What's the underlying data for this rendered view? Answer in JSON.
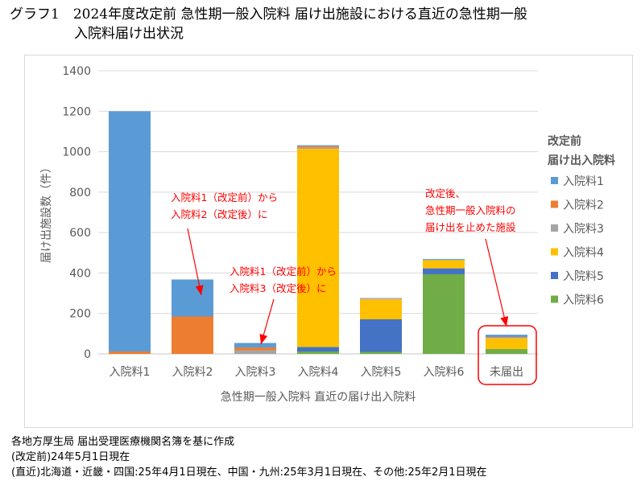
{
  "title": {
    "line1": "グラフ1　2024年度改定前 急性期一般入院料 届け出施設における直近の急性期一般",
    "line2": "入院料届け出状況"
  },
  "chart_data": {
    "type": "bar",
    "stacked": true,
    "categories": [
      "入院料1",
      "入院料2",
      "入院料3",
      "入院料4",
      "入院料5",
      "入院料6",
      "未届出"
    ],
    "xlabel": "急性期一般入院料 直近の届け出入院料",
    "ylabel": "届け出施設数（件）",
    "ylim": [
      0,
      1400
    ],
    "yticks": [
      0,
      200,
      400,
      600,
      800,
      1000,
      1200,
      1400
    ],
    "grid": true,
    "legend": {
      "title1": "改定前",
      "title2": "届け出入院料",
      "placement": "right"
    },
    "series": [
      {
        "name": "入院料1",
        "color": "#5b9bd5",
        "values": [
          1188,
          183,
          22,
          5,
          2,
          5,
          12
        ]
      },
      {
        "name": "入院料2",
        "color": "#ed7d31",
        "values": [
          12,
          185,
          14,
          8,
          2,
          0,
          4
        ]
      },
      {
        "name": "入院料3",
        "color": "#a5a5a5",
        "values": [
          0,
          0,
          18,
          5,
          3,
          0,
          2
        ]
      },
      {
        "name": "入院料4",
        "color": "#ffc000",
        "values": [
          0,
          0,
          0,
          980,
          98,
          41,
          53
        ]
      },
      {
        "name": "入院料5",
        "color": "#4472c4",
        "values": [
          0,
          0,
          0,
          22,
          161,
          29,
          0
        ]
      },
      {
        "name": "入院料6",
        "color": "#70ad47",
        "values": [
          0,
          0,
          0,
          12,
          10,
          394,
          24
        ]
      }
    ],
    "annotations": [
      {
        "lines": [
          "入院料1（改定前）から",
          "入院料2（改定後）に"
        ]
      },
      {
        "lines": [
          "入院料1（改定前）から",
          "入院料3（改定後）に"
        ]
      },
      {
        "lines": [
          "改定後、",
          "急性期一般入院料の",
          "届け出を止めた施設"
        ]
      }
    ],
    "annotation_color": "#ff0000"
  },
  "notes": [
    "各地方厚生局 届出受理医療機関名簿を基に作成",
    "(改定前)24年5月1日現在",
    "(直近)北海道・近畿・四国:25年4月1日現在、中国・九州:25年3月1日現在、その他:25年2月1日現在"
  ]
}
